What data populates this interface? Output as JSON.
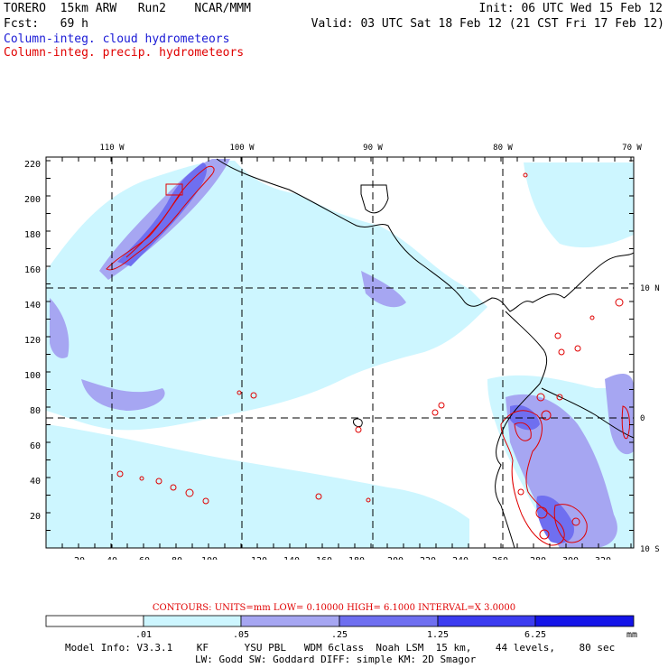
{
  "header": {
    "left_line1": "TORERO  15km ARW   Run2    NCAR/MMM",
    "left_line2": "Fcst:   69 h",
    "right_line1": "Init: 06 UTC Wed 15 Feb 12",
    "right_line2": "Valid: 03 UTC Sat 18 Feb 12 (21 CST Fri 17 Feb 12)",
    "legend_cloud": "Column-integ. cloud hydrometeors",
    "legend_precip": "Column-integ. precip. hydrometeors"
  },
  "map": {
    "lon_labels": [
      "110 W",
      "100 W",
      "90 W",
      "80 W",
      "70 W"
    ],
    "lat_labels": [
      "10 N",
      "0",
      "10 S"
    ],
    "y_ticks": [
      "220",
      "200",
      "180",
      "160",
      "140",
      "120",
      "100",
      "80",
      "60",
      "40",
      "20"
    ],
    "x_ticks": [
      "20",
      "40",
      "60",
      "80",
      "100",
      "120",
      "140",
      "160",
      "180",
      "200",
      "220",
      "240",
      "260",
      "280",
      "300",
      "320"
    ],
    "colors": {
      "c1": "#cdf6ff",
      "c2": "#a6a6f2",
      "c3": "#6f6ff0",
      "c4": "#3c3cf0",
      "c5": "#1414e8",
      "contour": "#e00000",
      "coast": "#000000"
    }
  },
  "contours": {
    "text": "CONTOURS:  UNITS=mm  LOW= 0.10000      HIGH=  6.1000      INTERVAL=X  3.0000"
  },
  "colorbar": {
    "labels": [
      ".01",
      ".05",
      ".25",
      "1.25",
      "6.25"
    ],
    "unit": "mm"
  },
  "footer": {
    "line1": "Model Info: V3.3.1    KF      YSU PBL   WDM 6class  Noah LSM  15 km,    44 levels,    80 sec",
    "line2": "LW: Godd SW: Goddard DIFF: simple KM: 2D Smagor"
  }
}
